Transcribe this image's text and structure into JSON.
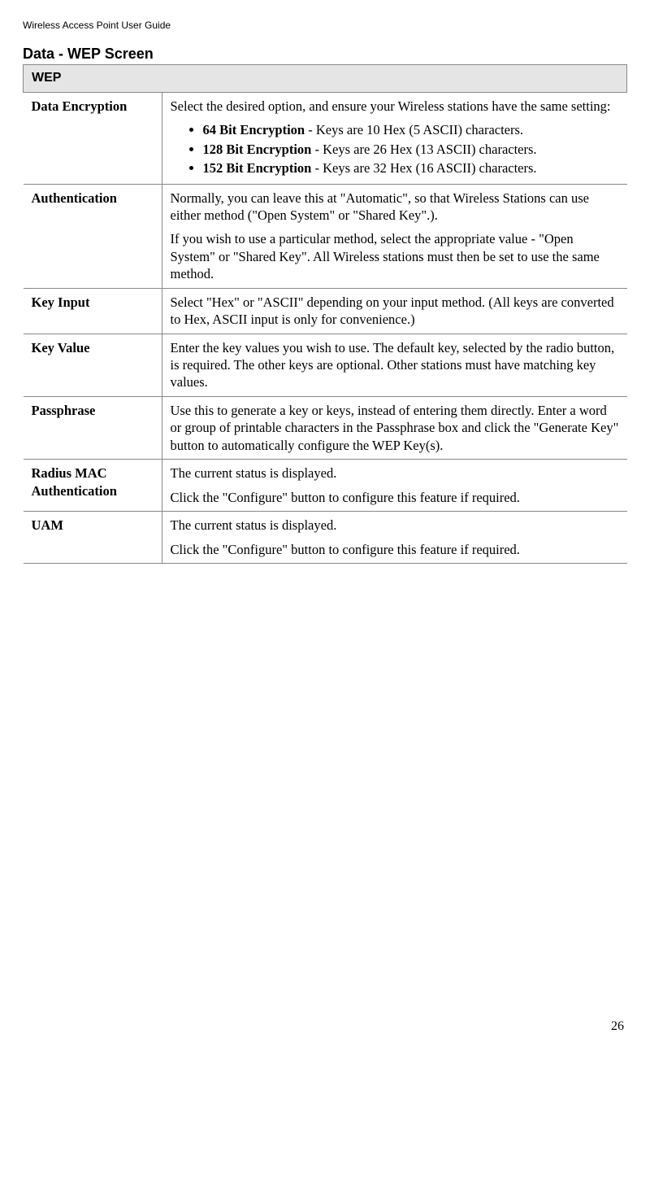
{
  "header": "Wireless Access Point User Guide",
  "section_title": "Data - WEP Screen",
  "table": {
    "header": "WEP",
    "rows": [
      {
        "label": "Data Encryption",
        "intro": "Select the desired option, and ensure your Wireless stations have the same setting:",
        "bullets": [
          {
            "bold": "64 Bit Encryption",
            "rest": " - Keys are 10 Hex (5 ASCII) characters."
          },
          {
            "bold": "128 Bit Encryption",
            "rest": " - Keys are 26 Hex (13 ASCII) characters."
          },
          {
            "bold": "152 Bit Encryption",
            "rest": " - Keys are 32 Hex (16 ASCII) characters."
          }
        ]
      },
      {
        "label": "Authentication",
        "paras": [
          "Normally, you can leave this at \"Automatic\", so that Wireless Stations can use either method (\"Open System\" or \"Shared Key\".).",
          "If you wish to use a particular method, select the appropriate value - \"Open System\" or \"Shared Key\". All Wireless stations must then be set to use the same method."
        ]
      },
      {
        "label": "Key Input",
        "paras": [
          "Select \"Hex\" or \"ASCII\" depending on your input method. (All keys are converted to Hex, ASCII input is only for convenience.)"
        ]
      },
      {
        "label": "Key Value",
        "paras": [
          "Enter the key values you wish to use. The default key, selected by the radio button, is required. The other keys are optional. Other stations must have matching key values."
        ]
      },
      {
        "label": "Passphrase",
        "paras": [
          "Use this to generate a key or keys, instead of entering them directly. Enter a word or group of printable characters in the Passphrase box and click the \"Generate Key\" button to automatically configure the WEP Key(s)."
        ]
      },
      {
        "label": "Radius MAC Authentication",
        "paras": [
          "The current status is displayed.",
          "Click the \"Configure\" button to configure this feature if required."
        ]
      },
      {
        "label": "UAM",
        "paras": [
          "The current status is displayed.",
          "Click the \"Configure\" button to configure this feature if required."
        ]
      }
    ]
  },
  "page_number": "26"
}
